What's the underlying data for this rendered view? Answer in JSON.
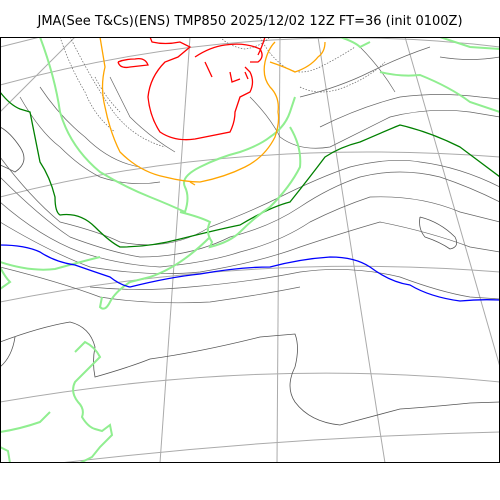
{
  "title": "JMA(See T&Cs)(ENS) TMP850 2025/12/02 12Z FT=36 (init 0100Z)",
  "colors": {
    "graticule": "#aaaaaa",
    "coastline": "#555555",
    "isotherm_minor": "#666666",
    "isotherm_green_dark": "#008000",
    "isotherm_green_light": "#90ee90",
    "isotherm_blue": "#0000ff",
    "isotherm_orange": "#ffa500",
    "isotherm_red": "#ff0000",
    "frame": "#000000"
  }
}
